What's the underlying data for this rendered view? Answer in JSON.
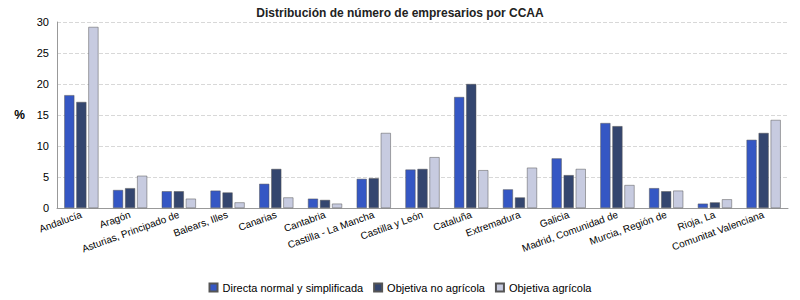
{
  "chart_data": {
    "type": "bar",
    "title": "Distribución de número de empresarios por CCAA",
    "y_label": "%",
    "categories": [
      "Andalucía",
      "Aragón",
      "Asturias, Principado de",
      "Balears, Illes",
      "Canarias",
      "Cantabria",
      "Castilla - La Mancha",
      "Castilla y León",
      "Cataluña",
      "Extremadura",
      "Galicia",
      "Madrid, Comunidad de",
      "Murcia, Región de",
      "Rioja, La",
      "Comunitat Valenciana"
    ],
    "series": [
      {
        "name": "Directa normal y simplificada",
        "color": "#3557c4",
        "values": [
          18.2,
          2.9,
          2.7,
          2.8,
          3.9,
          1.5,
          4.7,
          6.2,
          17.9,
          3.0,
          8.0,
          13.7,
          3.2,
          0.7,
          11.0
        ]
      },
      {
        "name": "Objetiva no agrícola",
        "color": "#34466f",
        "values": [
          17.1,
          3.2,
          2.7,
          2.5,
          6.3,
          1.3,
          4.8,
          6.3,
          20.0,
          1.7,
          5.3,
          13.2,
          2.7,
          0.9,
          12.1
        ]
      },
      {
        "name": "Objetiva agrícola",
        "color": "#c7cbe0",
        "values": [
          29.2,
          5.2,
          1.5,
          0.9,
          1.7,
          0.7,
          12.1,
          8.2,
          6.1,
          6.5,
          6.3,
          3.7,
          2.8,
          1.4,
          14.2
        ]
      }
    ],
    "ylim": [
      0,
      30
    ],
    "yticks": [
      0,
      5,
      10,
      15,
      20,
      25,
      30
    ],
    "grid": true,
    "legend": "bottom"
  }
}
